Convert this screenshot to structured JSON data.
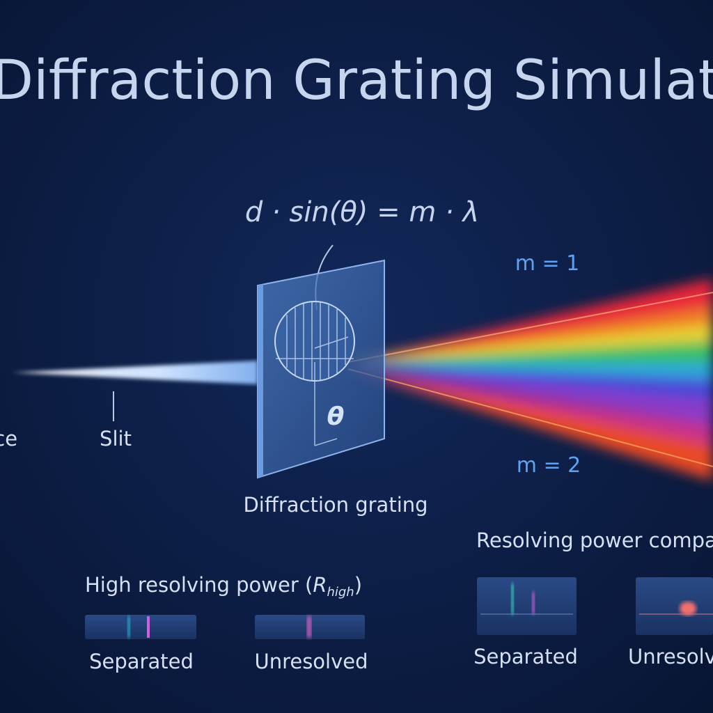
{
  "header": {
    "title": "Diffraction Grating Simulator"
  },
  "equation": "d · sin(θ) = m · λ",
  "labels": {
    "source": "rce",
    "slit": "Slit",
    "grating": "Diffraction grating",
    "theta": "θ",
    "order_1": "m = 1",
    "order_2": "m = 2"
  },
  "left_panel": {
    "title_prefix": "High resolving power (",
    "symbol": "R",
    "subscript": "high",
    "title_suffix": ")",
    "items": [
      "Separated",
      "Unresolved"
    ]
  },
  "right_panel": {
    "title": "Resolving power compari",
    "items": [
      "Separated",
      "Unresolv"
    ]
  }
}
